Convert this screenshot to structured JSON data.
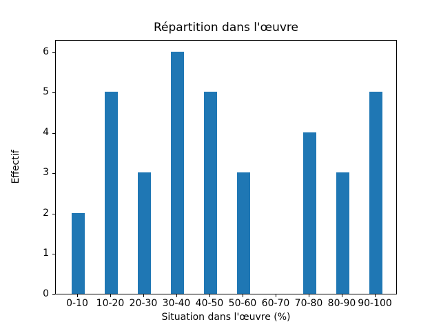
{
  "chart_data": {
    "type": "bar",
    "title": "Répartition dans l'œuvre",
    "xlabel": "Situation dans l'œuvre (%)",
    "ylabel": "Effectif",
    "categories": [
      "0-10",
      "10-20",
      "20-30",
      "30-40",
      "40-50",
      "50-60",
      "60-70",
      "70-80",
      "80-90",
      "90-100"
    ],
    "values": [
      2,
      5,
      3,
      6,
      5,
      3,
      0,
      4,
      3,
      5
    ],
    "yticks": [
      0,
      1,
      2,
      3,
      4,
      5,
      6
    ],
    "ylim": [
      0,
      6.3
    ],
    "bar_color": "#1f77b4",
    "axis_color": "#000000",
    "background_color": "#ffffff",
    "grid": false,
    "legend_position": "none"
  }
}
